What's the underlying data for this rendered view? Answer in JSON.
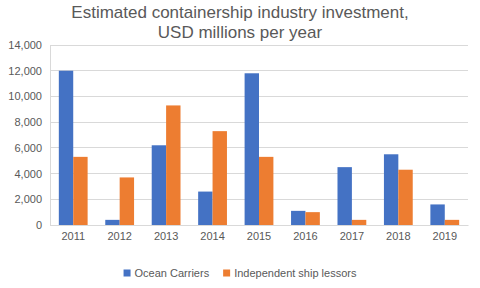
{
  "chart_data": {
    "type": "bar",
    "title": "Estimated containership industry investment, USD millions per year",
    "categories": [
      "2011",
      "2012",
      "2013",
      "2014",
      "2015",
      "2016",
      "2017",
      "2018",
      "2019"
    ],
    "series": [
      {
        "name": "Ocean Carriers",
        "color": "#4472c4",
        "values": [
          12000,
          400,
          6200,
          2600,
          11800,
          1100,
          4500,
          5500,
          1600
        ]
      },
      {
        "name": "Independent ship lessors",
        "color": "#ed7d31",
        "values": [
          5300,
          3700,
          9300,
          7300,
          5300,
          1000,
          400,
          4300,
          400
        ]
      }
    ],
    "ylim": [
      0,
      14000
    ],
    "yticks": [
      0,
      {
        "value": 2000,
        "label": "2,000"
      },
      {
        "value": 4000,
        "label": "4,000"
      },
      {
        "value": 6000,
        "label": "6,000"
      },
      {
        "value": 8000,
        "label": "8,000"
      },
      {
        "value": 10000,
        "label": "10,000"
      },
      {
        "value": 12000,
        "label": "12,000"
      },
      {
        "value": 14000,
        "label": "14,000"
      }
    ],
    "grid": true,
    "legend": "bottom"
  }
}
